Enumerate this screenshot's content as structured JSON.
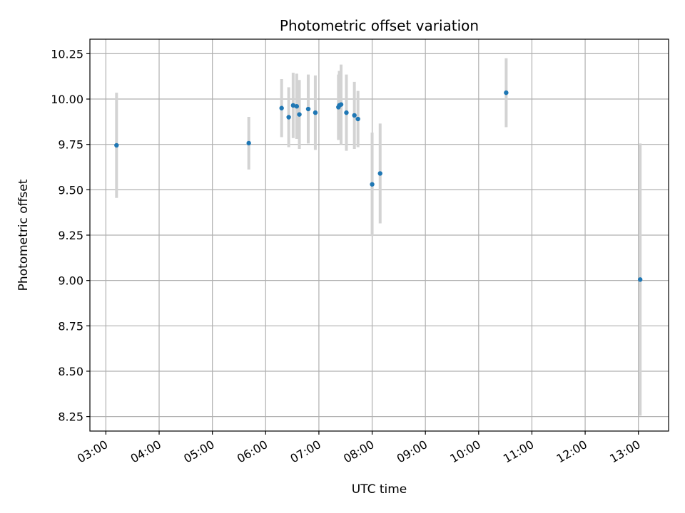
{
  "chart_data": {
    "type": "scatter",
    "title": "Photometric offset variation",
    "xlabel": "UTC time",
    "ylabel": "Photometric offset",
    "x_tick_labels": [
      "03:00",
      "04:00",
      "05:00",
      "06:00",
      "07:00",
      "08:00",
      "09:00",
      "10:00",
      "11:00",
      "12:00",
      "13:00"
    ],
    "y_tick_labels": [
      "8.25",
      "8.50",
      "8.75",
      "9.00",
      "9.25",
      "9.50",
      "9.75",
      "10.00",
      "10.25"
    ],
    "y_ticks": [
      8.25,
      8.5,
      8.75,
      9.0,
      9.25,
      9.5,
      9.75,
      10.0,
      10.25
    ],
    "xlim": [
      "02:42",
      "13:34"
    ],
    "ylim": [
      8.17,
      10.33
    ],
    "grid": true,
    "colors": {
      "point": "#1f77b4",
      "errorbar": "#d3d3d3",
      "grid": "#b0b0b0"
    },
    "points": [
      {
        "x": "03:12",
        "y": 9.745,
        "yerr": 0.29
      },
      {
        "x": "05:41",
        "y": 9.757,
        "yerr": 0.145
      },
      {
        "x": "06:18",
        "y": 9.95,
        "yerr": 0.16
      },
      {
        "x": "06:26",
        "y": 9.9,
        "yerr": 0.165
      },
      {
        "x": "06:31",
        "y": 9.965,
        "yerr": 0.18
      },
      {
        "x": "06:35",
        "y": 9.96,
        "yerr": 0.18
      },
      {
        "x": "06:38",
        "y": 9.915,
        "yerr": 0.19
      },
      {
        "x": "06:48",
        "y": 9.945,
        "yerr": 0.19
      },
      {
        "x": "06:56",
        "y": 9.925,
        "yerr": 0.205
      },
      {
        "x": "07:22",
        "y": 9.955,
        "yerr": 0.18
      },
      {
        "x": "07:23",
        "y": 9.965,
        "yerr": 0.19
      },
      {
        "x": "07:25",
        "y": 9.97,
        "yerr": 0.22
      },
      {
        "x": "07:31",
        "y": 9.925,
        "yerr": 0.21
      },
      {
        "x": "07:40",
        "y": 9.91,
        "yerr": 0.185
      },
      {
        "x": "07:44",
        "y": 9.89,
        "yerr": 0.155
      },
      {
        "x": "08:00",
        "y": 9.53,
        "yerr": 0.285
      },
      {
        "x": "08:09",
        "y": 9.59,
        "yerr": 0.275
      },
      {
        "x": "10:31",
        "y": 10.035,
        "yerr": 0.19
      },
      {
        "x": "13:02",
        "y": 9.005,
        "yerr": 0.75
      }
    ]
  }
}
